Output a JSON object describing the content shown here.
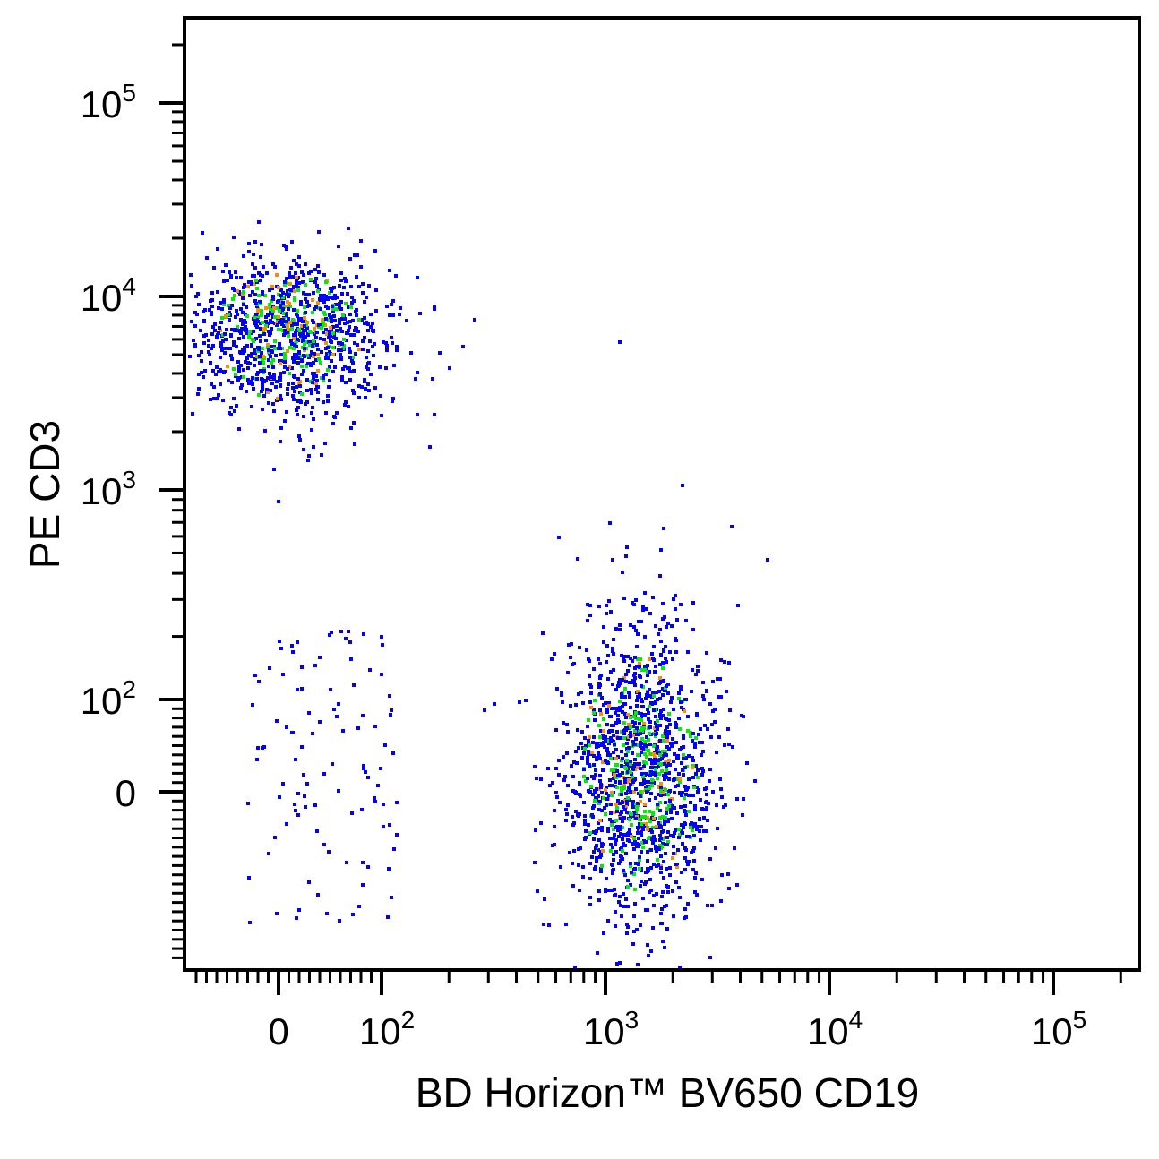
{
  "chart_data": {
    "type": "scatter",
    "title": "",
    "xlabel": "BD Horizon™ BV650   CD19",
    "ylabel": "PE CD3",
    "x_scale": "biexponential",
    "y_scale": "biexponential",
    "xlim": [
      -80,
      250000
    ],
    "ylim": [
      -200,
      250000
    ],
    "x_ticks": [
      {
        "value": 0,
        "base": "0",
        "exp": ""
      },
      {
        "value": 100,
        "base": "10",
        "exp": "2"
      },
      {
        "value": 1000,
        "base": "10",
        "exp": "3"
      },
      {
        "value": 10000,
        "base": "10",
        "exp": "4"
      },
      {
        "value": 100000,
        "base": "10",
        "exp": "5"
      }
    ],
    "y_ticks": [
      {
        "value": 0,
        "base": "0",
        "exp": ""
      },
      {
        "value": 100,
        "base": "10",
        "exp": "2"
      },
      {
        "value": 1000,
        "base": "10",
        "exp": "3"
      },
      {
        "value": 10000,
        "base": "10",
        "exp": "4"
      },
      {
        "value": 100000,
        "base": "10",
        "exp": "5"
      }
    ],
    "density_colors": {
      "low": "#0000ff",
      "medium": "#00ee00",
      "high": "#ff8c00",
      "peak": "#ff0000"
    },
    "series": [
      {
        "description": "CD3+ CD19- cluster",
        "x_center": 10,
        "y_center": 6500,
        "events": 1100
      },
      {
        "description": "CD3- CD19+ cluster",
        "x_center": 1400,
        "y_center": 20,
        "events": 1500
      },
      {
        "description": "CD3- CD19- events",
        "x_center": 40,
        "y_center": 20,
        "events": 110
      }
    ],
    "grid": false,
    "legend": "none"
  }
}
